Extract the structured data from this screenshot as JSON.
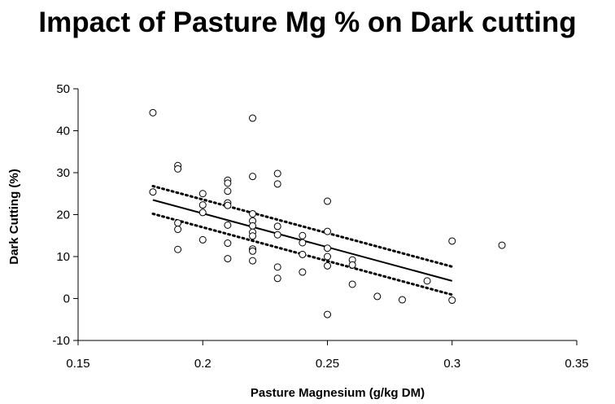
{
  "chart_data": {
    "type": "scatter",
    "title": "Impact of Pasture Mg % on Dark cutting",
    "xlabel": "Pasture Magnesium (g/kg DM)",
    "ylabel": "Dark Cutting (%)",
    "xlim": [
      0.15,
      0.35
    ],
    "ylim": [
      -10,
      50
    ],
    "x_ticks": [
      "0.15",
      "0.2",
      "0.25",
      "0.3",
      "0.35"
    ],
    "x_tick_values": [
      0.15,
      0.2,
      0.25,
      0.3,
      0.35
    ],
    "y_ticks": [
      "50",
      "40",
      "30",
      "20",
      "10",
      "0",
      "-10"
    ],
    "y_tick_values": [
      50,
      40,
      30,
      20,
      10,
      0,
      -10
    ],
    "grid": false,
    "legend": "none",
    "points": [
      [
        0.18,
        44.3
      ],
      [
        0.18,
        25.4
      ],
      [
        0.19,
        31.7
      ],
      [
        0.19,
        30.9
      ],
      [
        0.19,
        18.0
      ],
      [
        0.19,
        16.5
      ],
      [
        0.19,
        11.7
      ],
      [
        0.2,
        25.0
      ],
      [
        0.2,
        22.3
      ],
      [
        0.2,
        20.5
      ],
      [
        0.2,
        14.0
      ],
      [
        0.21,
        28.2
      ],
      [
        0.21,
        27.5
      ],
      [
        0.21,
        25.6
      ],
      [
        0.21,
        22.8
      ],
      [
        0.21,
        22.2
      ],
      [
        0.21,
        17.5
      ],
      [
        0.21,
        13.2
      ],
      [
        0.21,
        9.5
      ],
      [
        0.22,
        43.0
      ],
      [
        0.22,
        29.1
      ],
      [
        0.22,
        20.2
      ],
      [
        0.22,
        18.5
      ],
      [
        0.22,
        17.3
      ],
      [
        0.22,
        15.8
      ],
      [
        0.22,
        14.9
      ],
      [
        0.22,
        11.8
      ],
      [
        0.22,
        11.3
      ],
      [
        0.22,
        9.0
      ],
      [
        0.23,
        29.8
      ],
      [
        0.23,
        27.3
      ],
      [
        0.23,
        17.2
      ],
      [
        0.23,
        15.2
      ],
      [
        0.23,
        7.5
      ],
      [
        0.23,
        4.8
      ],
      [
        0.24,
        15.0
      ],
      [
        0.24,
        13.3
      ],
      [
        0.24,
        10.5
      ],
      [
        0.24,
        6.3
      ],
      [
        0.25,
        23.2
      ],
      [
        0.25,
        16.0
      ],
      [
        0.25,
        12.0
      ],
      [
        0.25,
        10.0
      ],
      [
        0.25,
        7.8
      ],
      [
        0.25,
        -3.8
      ],
      [
        0.26,
        9.2
      ],
      [
        0.26,
        8.0
      ],
      [
        0.26,
        3.4
      ],
      [
        0.27,
        0.5
      ],
      [
        0.28,
        -0.3
      ],
      [
        0.29,
        4.2
      ],
      [
        0.3,
        13.7
      ],
      [
        0.3,
        -0.4
      ],
      [
        0.32,
        12.7
      ]
    ],
    "trend_line": {
      "x": [
        0.18,
        0.3
      ],
      "y": [
        23.5,
        4.2
      ]
    },
    "upper_bound": {
      "x": [
        0.18,
        0.3
      ],
      "y": [
        26.8,
        7.6
      ]
    },
    "lower_bound": {
      "x": [
        0.18,
        0.3
      ],
      "y": [
        20.2,
        0.9
      ]
    },
    "colors": {
      "points": "#000000",
      "lines": "#000000",
      "axis": "#000000"
    }
  }
}
